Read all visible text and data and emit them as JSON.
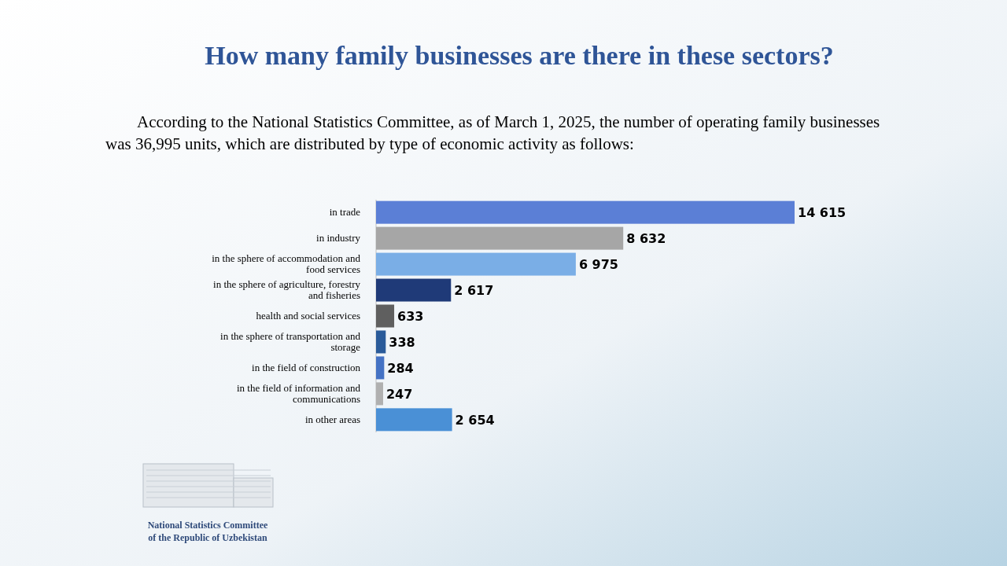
{
  "chart_data": {
    "type": "bar",
    "orientation": "horizontal",
    "title": "How many family businesses are there in these sectors?",
    "subtitle": "According to the National Statistics Committee, as of March 1, 2025, the number of operating family businesses was 36,995 units, which are distributed by type of economic activity as follows:",
    "categories": [
      "in trade",
      "in industry",
      "in the sphere of accommodation and food services",
      "in the sphere of agriculture, forestry and fisheries",
      "health and social services",
      "in the sphere of transportation and storage",
      "in the field of construction",
      "in the field of information and communications",
      "in other areas"
    ],
    "values": [
      14615,
      8632,
      6975,
      2617,
      633,
      338,
      284,
      247,
      2654
    ],
    "value_labels": [
      "14 615",
      "8 632",
      "6 975",
      "2 617",
      "633",
      "338",
      "284",
      "247",
      "2 654"
    ],
    "colors": [
      "#5b7fd6",
      "#a6a6a6",
      "#7aaee6",
      "#1f3a78",
      "#5f5f5f",
      "#2a5b9a",
      "#4472c4",
      "#b0b0b0",
      "#4a90d6"
    ],
    "annotations": [
      "National Statistics Committee of the Republic of Uzbekistan"
    ]
  }
}
